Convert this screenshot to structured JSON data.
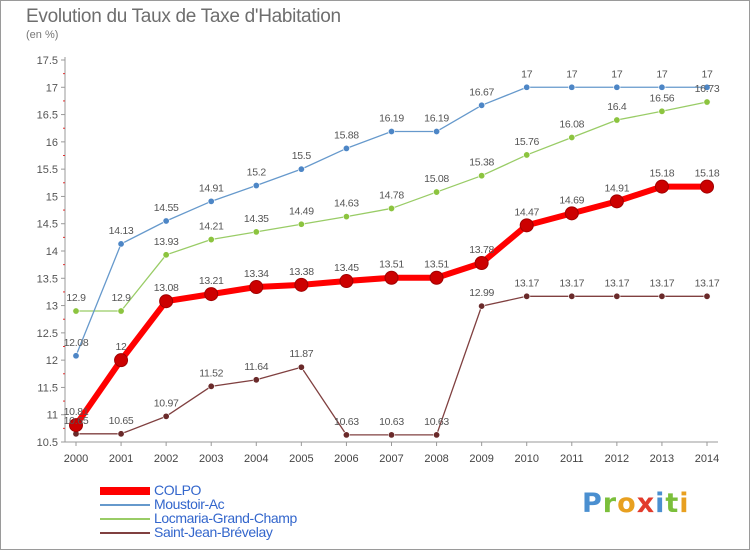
{
  "header": {
    "title": "Evolution du Taux de Taxe d'Habitation",
    "subtitle": "(en %)"
  },
  "brand": {
    "text": "Proxiti",
    "letters": [
      {
        "ch": "P",
        "color": "#4a8fd0"
      },
      {
        "ch": "r",
        "color": "#7bbf3b"
      },
      {
        "ch": "o",
        "color": "#e8a020"
      },
      {
        "ch": "x",
        "color": "#e23b2c"
      },
      {
        "ch": "i",
        "color": "#4a8fd0"
      },
      {
        "ch": "t",
        "color": "#7bbf3b"
      },
      {
        "ch": "i",
        "color": "#e8a020"
      }
    ]
  },
  "chart_data": {
    "type": "line",
    "title": "Evolution du Taux de Taxe d'Habitation",
    "ylabel": "(en %)",
    "xlabel": "",
    "x": [
      "2000",
      "2001",
      "2002",
      "2003",
      "2004",
      "2005",
      "2006",
      "2007",
      "2008",
      "2009",
      "2010",
      "2011",
      "2012",
      "2013",
      "2014"
    ],
    "ylim": [
      10.5,
      17.5
    ],
    "yticks": [
      "10.5",
      "11",
      "11.5",
      "12",
      "12.5",
      "13",
      "13.5",
      "14",
      "14.5",
      "15",
      "15.5",
      "16",
      "16.5",
      "17",
      "17.5"
    ],
    "grid": false,
    "legend_position": "bottom-left",
    "series": [
      {
        "name": "COLPO",
        "color": "#ff0000",
        "marker_color": "#cc0000",
        "thick": true,
        "values": [
          10.81,
          12,
          13.08,
          13.21,
          13.34,
          13.38,
          13.45,
          13.51,
          13.51,
          13.78,
          14.47,
          14.69,
          14.91,
          15.18,
          15.18
        ],
        "labels": [
          "10.81",
          "12",
          "13.08",
          "13.21",
          "13.34",
          "13.38",
          "13.45",
          "13.51",
          "13.51",
          "13.78",
          "14.47",
          "14.69",
          "14.91",
          "15.18",
          "15.18"
        ]
      },
      {
        "name": "Moustoir-Ac",
        "color": "#6699cc",
        "marker_color": "#4d86c6",
        "thick": false,
        "values": [
          12.08,
          14.13,
          14.55,
          14.91,
          15.2,
          15.5,
          15.88,
          16.19,
          16.19,
          16.67,
          17,
          17,
          17,
          17,
          17
        ],
        "labels": [
          "12.08",
          "14.13",
          "14.55",
          "14.91",
          "15.2",
          "15.5",
          "15.88",
          "16.19",
          "16.19",
          "16.67",
          "17",
          "17",
          "17",
          "17",
          "17"
        ]
      },
      {
        "name": "Locmaria-Grand-Champ",
        "color": "#99cc66",
        "marker_color": "#8cc43f",
        "thick": false,
        "values": [
          12.9,
          12.9,
          13.93,
          14.21,
          14.35,
          14.49,
          14.63,
          14.78,
          15.08,
          15.38,
          15.76,
          16.08,
          16.4,
          16.56,
          16.73
        ],
        "labels": [
          "12.9",
          "12.9",
          "13.93",
          "14.21",
          "14.35",
          "14.49",
          "14.63",
          "14.78",
          "15.08",
          "15.38",
          "15.76",
          "16.08",
          "16.4",
          "16.56",
          "16.73"
        ]
      },
      {
        "name": "Saint-Jean-Brévelay",
        "color": "#804040",
        "marker_color": "#6a2a2a",
        "thick": false,
        "values": [
          10.65,
          10.65,
          10.97,
          11.52,
          11.64,
          11.87,
          10.63,
          10.63,
          10.63,
          12.99,
          13.17,
          13.17,
          13.17,
          13.17,
          13.17
        ],
        "labels": [
          "10.65",
          "10.65",
          "10.97",
          "11.52",
          "11.64",
          "11.87",
          "10.63",
          "10.63",
          "10.63",
          "12.99",
          "13.17",
          "13.17",
          "13.17",
          "13.17",
          "13.17"
        ]
      }
    ]
  }
}
